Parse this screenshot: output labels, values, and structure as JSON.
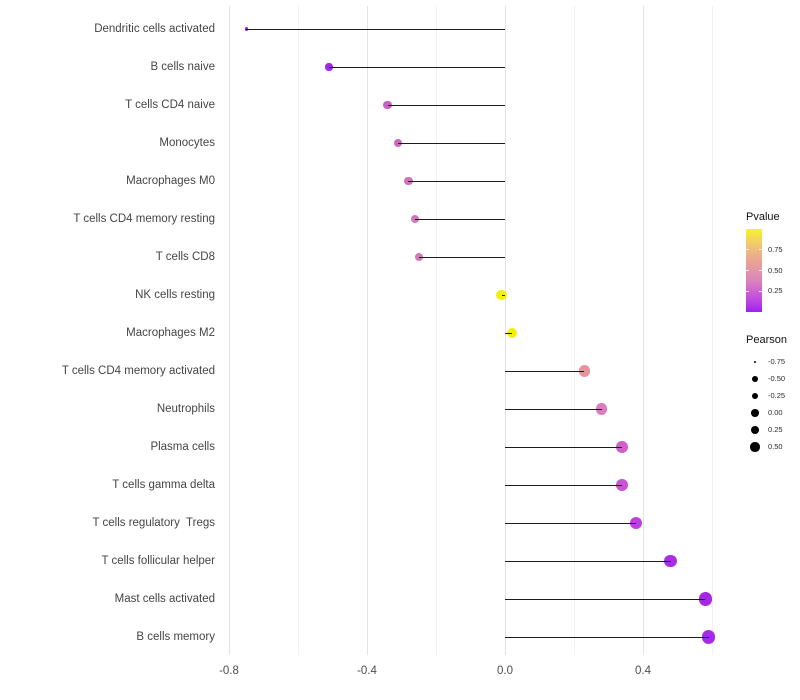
{
  "chart_data": {
    "type": "scatter",
    "subtype": "lollipop",
    "title": "",
    "xlabel": "",
    "ylabel": "",
    "xlim": [
      -0.82,
      0.65
    ],
    "xticks": [
      -0.8,
      -0.4,
      0.0,
      0.4
    ],
    "xtick_labels": [
      "-0.8",
      "-0.4",
      "0.0",
      "0.4"
    ],
    "minor_xticks": [
      -0.6,
      -0.2,
      0.2,
      0.6
    ],
    "grid": "vertical-only",
    "background": "#ffffff",
    "stem_color": "#1c1c1c",
    "axis_text_color": "#4d4d4d",
    "points": [
      {
        "label": "Dendritic cells activated",
        "pearson": -0.75,
        "color": "#9a1ce8",
        "radius": 1.6
      },
      {
        "label": "B cells naive",
        "pearson": -0.51,
        "color": "#a32ae0",
        "radius": 3.6
      },
      {
        "label": "T cells CD4 naive",
        "pearson": -0.34,
        "color": "#ca61c6",
        "radius": 4.3
      },
      {
        "label": "Monocytes",
        "pearson": -0.31,
        "color": "#cc68c1",
        "radius": 4.3
      },
      {
        "label": "Macrophages M0",
        "pearson": -0.28,
        "color": "#d172bd",
        "radius": 4.2
      },
      {
        "label": "T cells CD4 memory resting",
        "pearson": -0.26,
        "color": "#d276bb",
        "radius": 4.2
      },
      {
        "label": "T cells CD8",
        "pearson": -0.25,
        "color": "#d378b9",
        "radius": 4.2
      },
      {
        "label": "NK cells resting",
        "pearson": -0.01,
        "color": "#f2ef11",
        "radius": 5.2
      },
      {
        "label": "Macrophages M2",
        "pearson": 0.02,
        "color": "#f2ef11",
        "radius": 5.3
      },
      {
        "label": "T cells CD4 memory activated",
        "pearson": 0.23,
        "color": "#e6959b",
        "radius": 5.6
      },
      {
        "label": "Neutrophils",
        "pearson": 0.28,
        "color": "#dc7bbd",
        "radius": 5.7
      },
      {
        "label": "Plasma cells",
        "pearson": 0.34,
        "color": "#ce5fcb",
        "radius": 5.9
      },
      {
        "label": "T cells gamma delta",
        "pearson": 0.34,
        "color": "#c953d1",
        "radius": 5.9
      },
      {
        "label": "T cells regulatory  Tregs",
        "pearson": 0.38,
        "color": "#bb40df",
        "radius": 6.0
      },
      {
        "label": "T cells follicular helper",
        "pearson": 0.48,
        "color": "#ac2ce3",
        "radius": 6.2
      },
      {
        "label": "Mast cells activated",
        "pearson": 0.58,
        "color": "#a527e3",
        "radius": 6.6
      },
      {
        "label": "B cells memory",
        "pearson": 0.59,
        "color": "#a62be5",
        "radius": 6.6
      }
    ],
    "legends": {
      "pvalue": {
        "title": "Pvalue",
        "tick_labels": [
          "0.75",
          "0.50",
          "0.25"
        ],
        "tick_values": [
          0.75,
          0.5,
          0.25
        ],
        "range": [
          0,
          1
        ],
        "gradient_stops": [
          "#a021f0",
          "#bb43e3",
          "#cd63d2",
          "#db84bb",
          "#e295a8",
          "#eaa78f",
          "#efbb7e",
          "#f4d65a",
          "#f8f620"
        ]
      },
      "pearson": {
        "title": "Pearson",
        "dot_color": "#000000",
        "entries": [
          {
            "label": "-0.75",
            "radius": 1.4
          },
          {
            "label": "-0.50",
            "radius": 2.9
          },
          {
            "label": "-0.25",
            "radius": 3.3
          },
          {
            "label": "0.00",
            "radius": 3.9
          },
          {
            "label": "0.25",
            "radius": 4.3
          },
          {
            "label": "0.50",
            "radius": 4.7
          }
        ]
      }
    }
  }
}
